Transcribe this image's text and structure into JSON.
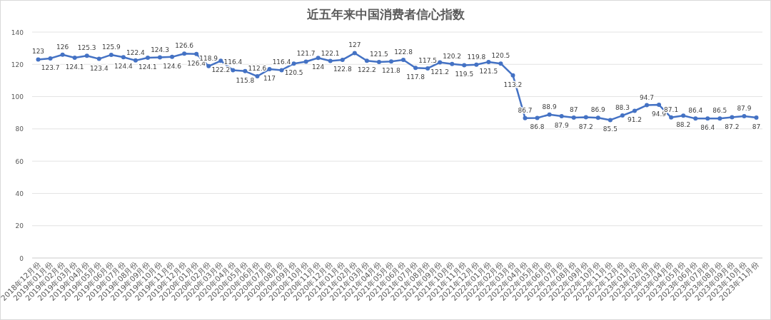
{
  "chart_data": {
    "type": "line",
    "title": "近五年来中国消费者信心指数",
    "categories": [
      "2018年12月份",
      "2019年01月份",
      "2019年02月份",
      "2019年03月份",
      "2019年04月份",
      "2019年05月份",
      "2019年06月份",
      "2019年07月份",
      "2019年08月份",
      "2019年09月份",
      "2019年10月份",
      "2019年11月份",
      "2019年12月份",
      "2020年01月份",
      "2020年02月份",
      "2020年03月份",
      "2020年04月份",
      "2020年05月份",
      "2020年06月份",
      "2020年07月份",
      "2020年08月份",
      "2020年09月份",
      "2020年10月份",
      "2020年11月份",
      "2020年12月份",
      "2021年01月份",
      "2021年02月份",
      "2021年03月份",
      "2021年04月份",
      "2021年05月份",
      "2021年06月份",
      "2021年07月份",
      "2021年08月份",
      "2021年09月份",
      "2021年10月份",
      "2021年11月份",
      "2021年12月份",
      "2022年01月份",
      "2022年02月份",
      "2022年03月份",
      "2022年04月份",
      "2022年05月份",
      "2022年06月份",
      "2022年07月份",
      "2022年08月份",
      "2022年09月份",
      "2022年10月份",
      "2022年11月份",
      "2022年12月份",
      "2023年01月份",
      "2023年02月份",
      "2023年03月份",
      "2023年04月份",
      "2023年05月份",
      "2023年06月份",
      "2023年07月份",
      "2023年08月份",
      "2023年09月份",
      "2023年10月份",
      "2023年11月份"
    ],
    "series": [
      {
        "color": "#4472c4",
        "values": [
          123,
          123.7,
          126,
          124.1,
          125.3,
          123.4,
          125.9,
          124.4,
          122.4,
          124.1,
          124.3,
          124.6,
          126.6,
          126.4,
          118.9,
          122.2,
          116.4,
          115.8,
          112.6,
          117,
          116.4,
          120.5,
          121.7,
          124,
          122.1,
          122.8,
          127,
          122.2,
          121.5,
          121.8,
          122.8,
          117.8,
          117.5,
          121.2,
          120.2,
          119.5,
          119.8,
          121.5,
          120.5,
          113.2,
          86.7,
          86.8,
          88.9,
          87.9,
          87,
          87.2,
          86.9,
          85.5,
          88.3,
          91.2,
          94.7,
          94.9,
          87.1,
          88.2,
          86.4,
          86.4,
          86.5,
          87.2,
          87.9,
          87
        ]
      }
    ],
    "ylim": [
      0,
      140
    ],
    "yticks": [
      0,
      20,
      40,
      60,
      80,
      100,
      120,
      140
    ],
    "grid": "y",
    "marker": "circle",
    "line_style": "solid",
    "data_labels": true
  }
}
